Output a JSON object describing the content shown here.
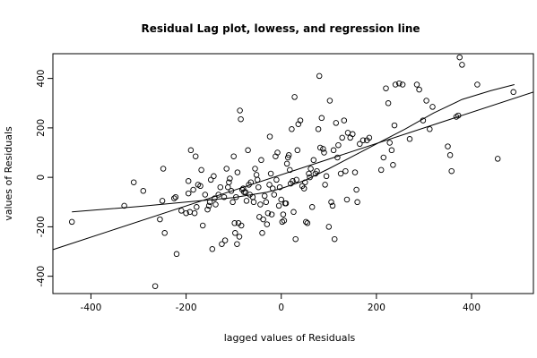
{
  "chart_data": {
    "type": "scatter",
    "title": "Residual Lag plot, lowess, and regression line",
    "xlabel": "lagged values of Residuals",
    "ylabel": "values of Residuals",
    "xlim": [
      -480,
      530
    ],
    "ylim": [
      -470,
      500
    ],
    "xticks": [
      -400,
      -200,
      0,
      200,
      400
    ],
    "yticks": [
      -400,
      -200,
      0,
      200,
      400
    ],
    "x_tick_labels": [
      "-400",
      "-200",
      "0",
      "200",
      "400"
    ],
    "y_tick_labels": [
      "-400",
      "-200",
      "0",
      "200",
      "400"
    ],
    "grid": false,
    "legend": "none",
    "points": [
      [
        -440,
        -180
      ],
      [
        -330,
        -115
      ],
      [
        -310,
        -20
      ],
      [
        -290,
        -55
      ],
      [
        -265,
        -440
      ],
      [
        -255,
        -170
      ],
      [
        -250,
        -95
      ],
      [
        -248,
        35
      ],
      [
        -245,
        -225
      ],
      [
        -225,
        -85
      ],
      [
        -222,
        -80
      ],
      [
        -220,
        -310
      ],
      [
        -210,
        -135
      ],
      [
        -200,
        -145
      ],
      [
        -195,
        -65
      ],
      [
        -195,
        -15
      ],
      [
        -192,
        -140
      ],
      [
        -190,
        110
      ],
      [
        -185,
        -50
      ],
      [
        -182,
        -145
      ],
      [
        -180,
        85
      ],
      [
        -178,
        -120
      ],
      [
        -175,
        -30
      ],
      [
        -170,
        -35
      ],
      [
        -168,
        30
      ],
      [
        -165,
        -195
      ],
      [
        -160,
        -70
      ],
      [
        -155,
        -130
      ],
      [
        -152,
        -115
      ],
      [
        -150,
        -100
      ],
      [
        -148,
        -10
      ],
      [
        -145,
        -290
      ],
      [
        -142,
        5
      ],
      [
        -140,
        -85
      ],
      [
        -138,
        -110
      ],
      [
        -132,
        -70
      ],
      [
        -128,
        -40
      ],
      [
        -125,
        -270
      ],
      [
        -120,
        -80
      ],
      [
        -118,
        -255
      ],
      [
        -115,
        35
      ],
      [
        -112,
        -40
      ],
      [
        -110,
        -20
      ],
      [
        -108,
        -5
      ],
      [
        -105,
        -55
      ],
      [
        -102,
        -100
      ],
      [
        -100,
        85
      ],
      [
        -98,
        -185
      ],
      [
        -97,
        -225
      ],
      [
        -95,
        -80
      ],
      [
        -93,
        -270
      ],
      [
        -92,
        20
      ],
      [
        -90,
        -185
      ],
      [
        -88,
        -240
      ],
      [
        -87,
        270
      ],
      [
        -85,
        235
      ],
      [
        -84,
        -195
      ],
      [
        -82,
        -50
      ],
      [
        -80,
        -45
      ],
      [
        -78,
        -60
      ],
      [
        -75,
        -60
      ],
      [
        -73,
        -95
      ],
      [
        -70,
        110
      ],
      [
        -68,
        -30
      ],
      [
        -66,
        -70
      ],
      [
        -64,
        -20
      ],
      [
        -60,
        -80
      ],
      [
        -58,
        -100
      ],
      [
        -55,
        35
      ],
      [
        -52,
        10
      ],
      [
        -50,
        -10
      ],
      [
        -48,
        -40
      ],
      [
        -46,
        -160
      ],
      [
        -44,
        -110
      ],
      [
        -42,
        70
      ],
      [
        -40,
        -225
      ],
      [
        -38,
        -170
      ],
      [
        -35,
        -75
      ],
      [
        -32,
        -100
      ],
      [
        -30,
        -190
      ],
      [
        -28,
        -145
      ],
      [
        -25,
        -30
      ],
      [
        -24,
        165
      ],
      [
        -22,
        15
      ],
      [
        -20,
        -150
      ],
      [
        -18,
        -45
      ],
      [
        -15,
        -70
      ],
      [
        -12,
        85
      ],
      [
        -10,
        -10
      ],
      [
        -8,
        100
      ],
      [
        -5,
        -115
      ],
      [
        -3,
        -40
      ],
      [
        0,
        -90
      ],
      [
        2,
        -180
      ],
      [
        4,
        -150
      ],
      [
        6,
        -175
      ],
      [
        8,
        -105
      ],
      [
        10,
        -105
      ],
      [
        12,
        55
      ],
      [
        14,
        80
      ],
      [
        16,
        90
      ],
      [
        18,
        30
      ],
      [
        20,
        -25
      ],
      [
        22,
        195
      ],
      [
        24,
        -15
      ],
      [
        26,
        -140
      ],
      [
        28,
        325
      ],
      [
        30,
        -250
      ],
      [
        32,
        -10
      ],
      [
        34,
        110
      ],
      [
        36,
        215
      ],
      [
        40,
        230
      ],
      [
        44,
        -35
      ],
      [
        48,
        -45
      ],
      [
        50,
        -20
      ],
      [
        52,
        -180
      ],
      [
        55,
        -185
      ],
      [
        58,
        15
      ],
      [
        60,
        0
      ],
      [
        62,
        35
      ],
      [
        65,
        -120
      ],
      [
        68,
        70
      ],
      [
        72,
        15
      ],
      [
        75,
        25
      ],
      [
        78,
        195
      ],
      [
        80,
        410
      ],
      [
        82,
        120
      ],
      [
        85,
        240
      ],
      [
        88,
        115
      ],
      [
        90,
        100
      ],
      [
        92,
        -30
      ],
      [
        95,
        5
      ],
      [
        100,
        -200
      ],
      [
        102,
        310
      ],
      [
        105,
        -100
      ],
      [
        108,
        -115
      ],
      [
        110,
        110
      ],
      [
        112,
        -250
      ],
      [
        115,
        220
      ],
      [
        118,
        80
      ],
      [
        120,
        130
      ],
      [
        125,
        15
      ],
      [
        128,
        160
      ],
      [
        132,
        230
      ],
      [
        135,
        25
      ],
      [
        138,
        -90
      ],
      [
        140,
        180
      ],
      [
        145,
        160
      ],
      [
        150,
        175
      ],
      [
        155,
        20
      ],
      [
        158,
        -50
      ],
      [
        160,
        -100
      ],
      [
        165,
        135
      ],
      [
        172,
        150
      ],
      [
        180,
        150
      ],
      [
        185,
        160
      ],
      [
        210,
        30
      ],
      [
        215,
        80
      ],
      [
        220,
        360
      ],
      [
        225,
        300
      ],
      [
        228,
        140
      ],
      [
        232,
        110
      ],
      [
        235,
        50
      ],
      [
        238,
        210
      ],
      [
        240,
        375
      ],
      [
        248,
        380
      ],
      [
        255,
        375
      ],
      [
        270,
        155
      ],
      [
        285,
        375
      ],
      [
        290,
        355
      ],
      [
        298,
        230
      ],
      [
        305,
        310
      ],
      [
        312,
        195
      ],
      [
        318,
        285
      ],
      [
        350,
        125
      ],
      [
        355,
        90
      ],
      [
        358,
        25
      ],
      [
        368,
        245
      ],
      [
        372,
        250
      ],
      [
        375,
        485
      ],
      [
        380,
        455
      ],
      [
        412,
        375
      ],
      [
        455,
        75
      ],
      [
        488,
        345
      ]
    ],
    "regression_line": [
      [
        -500,
        -305
      ],
      [
        530,
        345
      ]
    ],
    "lowess_line": [
      [
        -440,
        -140
      ],
      [
        -300,
        -118
      ],
      [
        -200,
        -100
      ],
      [
        -100,
        -82
      ],
      [
        -30,
        -60
      ],
      [
        0,
        -45
      ],
      [
        50,
        -12
      ],
      [
        100,
        35
      ],
      [
        150,
        85
      ],
      [
        200,
        135
      ],
      [
        260,
        195
      ],
      [
        320,
        260
      ],
      [
        380,
        315
      ],
      [
        440,
        350
      ],
      [
        490,
        375
      ]
    ]
  }
}
